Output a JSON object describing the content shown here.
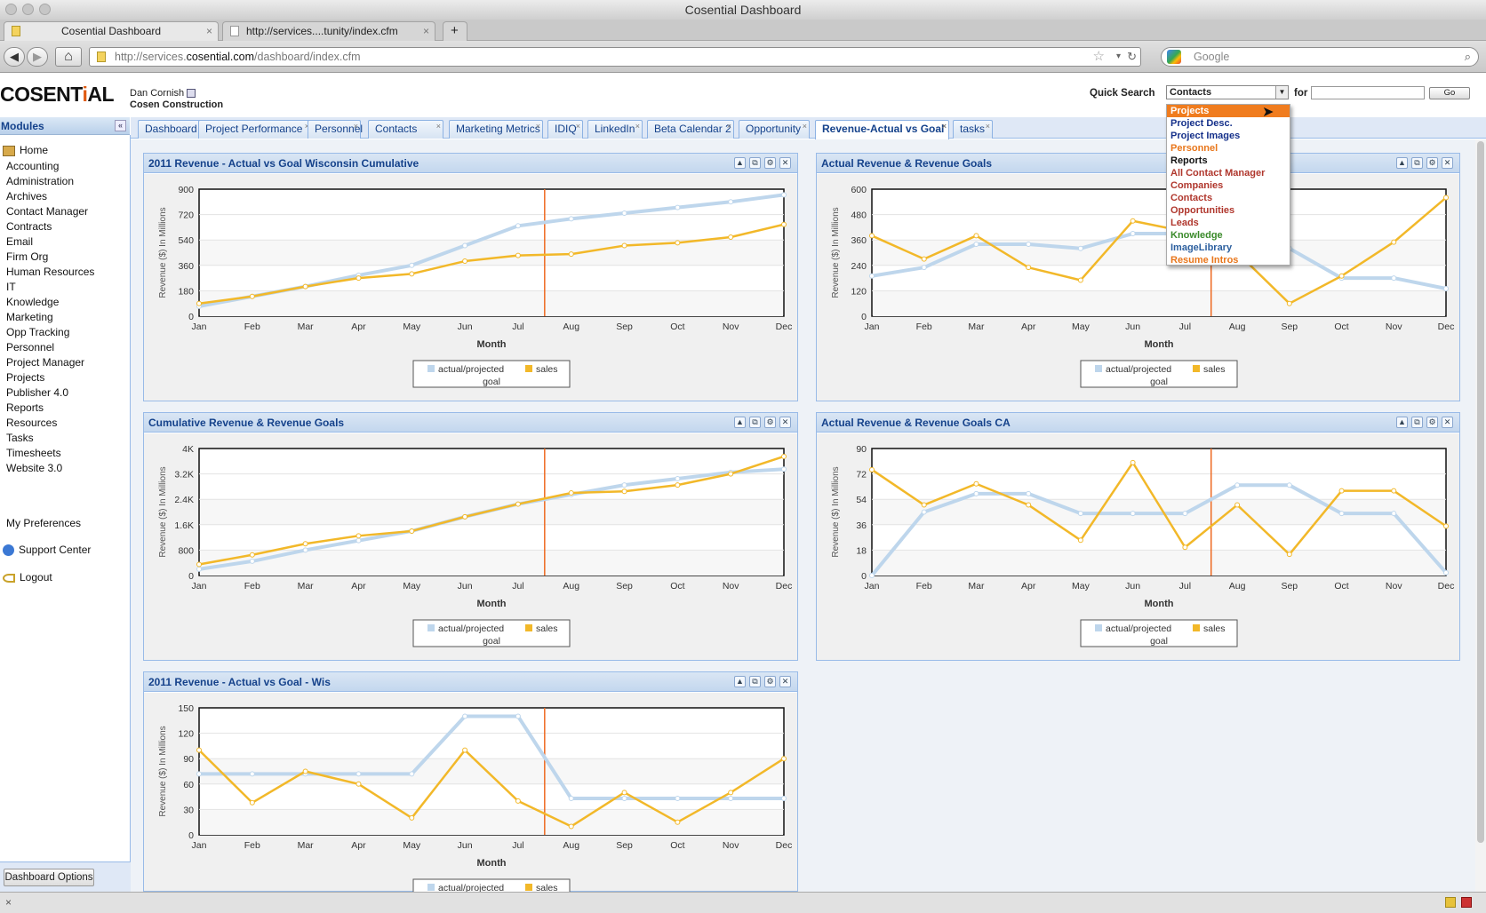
{
  "window": {
    "title": "Cosential Dashboard"
  },
  "browser_tabs": [
    {
      "label": "Cosential Dashboard",
      "close": "×"
    },
    {
      "label": "http://services....tunity/index.cfm",
      "close": "×"
    },
    {
      "label": "+"
    }
  ],
  "nav": {
    "back": "◀",
    "forward": "▶",
    "home": "⌂",
    "reload": "↻"
  },
  "url": {
    "prefix": "http://services.",
    "domain": "cosential.com",
    "path": "/dashboard/index.cfm"
  },
  "search_engine": {
    "placeholder": "Google"
  },
  "app": {
    "logo": {
      "pre": "COSENT",
      "i": "i",
      "post": "AL"
    },
    "user_name": "Dan Cornish",
    "company": "Cosen Construction",
    "quick_search": {
      "label": "Quick Search",
      "selected": "Contacts",
      "for_label": "for",
      "go": "Go",
      "options": [
        {
          "label": "Projects",
          "color": "#ffffff",
          "bg": "#f07c1e"
        },
        {
          "label": "Project Desc.",
          "color": "#15308a"
        },
        {
          "label": "Project Images",
          "color": "#15308a"
        },
        {
          "label": "Personnel",
          "color": "#e8761b"
        },
        {
          "label": "Reports",
          "color": "#111111"
        },
        {
          "label": "All Contact Manager",
          "color": "#b0372d"
        },
        {
          "label": "Companies",
          "color": "#b0372d"
        },
        {
          "label": "Contacts",
          "color": "#b0372d"
        },
        {
          "label": "Opportunities",
          "color": "#b0372d"
        },
        {
          "label": "Leads",
          "color": "#b0372d"
        },
        {
          "label": "Knowledge",
          "color": "#3a8a2a"
        },
        {
          "label": "ImageLibrary",
          "color": "#2c5f9e"
        },
        {
          "label": "Resume Intros",
          "color": "#e8761b"
        }
      ]
    }
  },
  "sidebar": {
    "header": "Modules",
    "collapse": "«",
    "home": "Home",
    "items": [
      "Accounting",
      "Administration",
      "Archives",
      "Contact Manager",
      "Contracts",
      "Email",
      "Firm Org",
      "Human Resources",
      "IT",
      "Knowledge",
      "Marketing",
      "Opp Tracking",
      "Personnel",
      "Project Manager",
      "Projects",
      "Publisher 4.0",
      "Reports",
      "Resources",
      "Tasks",
      "Timesheets",
      "Website 3.0"
    ],
    "preferences": "My Preferences",
    "support": "Support Center",
    "logout": "Logout",
    "dashboard_options": "Dashboard Options"
  },
  "dashboard_tabs": [
    {
      "label": "Dashboard"
    },
    {
      "label": "Project Performance"
    },
    {
      "label": "Personnel"
    },
    {
      "label": "Contacts"
    },
    {
      "label": "Marketing Metrics"
    },
    {
      "label": "IDIQ"
    },
    {
      "label": "LinkedIn"
    },
    {
      "label": "Beta Calendar 2"
    },
    {
      "label": "Opportunity"
    },
    {
      "label": "Revenue-Actual vs Goal",
      "active": true
    },
    {
      "label": "tasks"
    }
  ],
  "colors": {
    "goal": "#bed6ec",
    "sales": "#f2b829",
    "divider": "#ee6a22"
  },
  "statusbar": {
    "text": "×"
  },
  "chart_data": [
    {
      "type": "line",
      "title": "2011 Revenue - Actual vs Goal Wisconsin Cumulative",
      "xlabel": "Month",
      "ylabel": "Revenue ($) In Millions",
      "categories": [
        "Jan",
        "Feb",
        "Mar",
        "Apr",
        "May",
        "Jun",
        "Jul",
        "Aug",
        "Sep",
        "Oct",
        "Nov",
        "Dec"
      ],
      "ylim": [
        0,
        900
      ],
      "yticks": [
        "0",
        "180",
        "360",
        "540",
        "720",
        "900"
      ],
      "series": [
        {
          "name": "actual/projected goal",
          "values": [
            70,
            140,
            210,
            290,
            360,
            500,
            640,
            690,
            730,
            770,
            810,
            860
          ]
        },
        {
          "name": "sales",
          "values": [
            90,
            140,
            210,
            270,
            300,
            390,
            430,
            440,
            500,
            520,
            560,
            650
          ]
        }
      ],
      "marker_x": 7.5
    },
    {
      "type": "line",
      "title": "Actual Revenue & Revenue Goals",
      "xlabel": "Month",
      "ylabel": "Revenue ($) In Millions",
      "categories": [
        "Jan",
        "Feb",
        "Mar",
        "Apr",
        "May",
        "Jun",
        "Jul",
        "Aug",
        "Sep",
        "Oct",
        "Nov",
        "Dec"
      ],
      "ylim": [
        0,
        600
      ],
      "yticks": [
        "0",
        "120",
        "240",
        "360",
        "480",
        "600"
      ],
      "series": [
        {
          "name": "actual/projected goal",
          "values": [
            190,
            230,
            340,
            340,
            320,
            390,
            390,
            390,
            320,
            180,
            180,
            130
          ]
        },
        {
          "name": "sales",
          "values": [
            380,
            270,
            380,
            230,
            170,
            450,
            400,
            300,
            60,
            190,
            350,
            560
          ]
        }
      ],
      "marker_x": 7.5
    },
    {
      "type": "line",
      "title": "Cumulative Revenue & Revenue Goals",
      "xlabel": "Month",
      "ylabel": "Revenue ($) In Millions",
      "categories": [
        "Jan",
        "Feb",
        "Mar",
        "Apr",
        "May",
        "Jun",
        "Jul",
        "Aug",
        "Sep",
        "Oct",
        "Nov",
        "Dec"
      ],
      "ylim": [
        0,
        4000
      ],
      "yticks": [
        "0",
        "800",
        "1.6K",
        "2.4K",
        "3.2K",
        "4K"
      ],
      "series": [
        {
          "name": "actual/projected goal",
          "values": [
            200,
            450,
            800,
            1100,
            1400,
            1850,
            2250,
            2550,
            2850,
            3050,
            3250,
            3350
          ]
        },
        {
          "name": "sales",
          "values": [
            350,
            650,
            1000,
            1250,
            1400,
            1850,
            2250,
            2600,
            2650,
            2850,
            3200,
            3750
          ]
        }
      ],
      "marker_x": 7.5
    },
    {
      "type": "line",
      "title": "Actual Revenue & Revenue Goals CA",
      "xlabel": "Month",
      "ylabel": "Revenue ($) In Millions",
      "categories": [
        "Jan",
        "Feb",
        "Mar",
        "Apr",
        "May",
        "Jun",
        "Jul",
        "Aug",
        "Sep",
        "Oct",
        "Nov",
        "Dec"
      ],
      "ylim": [
        0,
        90
      ],
      "yticks": [
        "0",
        "18",
        "36",
        "54",
        "72",
        "90"
      ],
      "series": [
        {
          "name": "actual/projected goal",
          "values": [
            0,
            45,
            58,
            58,
            44,
            44,
            44,
            64,
            64,
            44,
            44,
            2
          ]
        },
        {
          "name": "sales",
          "values": [
            75,
            50,
            65,
            50,
            25,
            80,
            20,
            50,
            15,
            60,
            60,
            35
          ]
        }
      ],
      "marker_x": 7.5
    },
    {
      "type": "line",
      "title": "2011 Revenue - Actual vs Goal - Wis",
      "xlabel": "Month",
      "ylabel": "Revenue ($) In Millions",
      "categories": [
        "Jan",
        "Feb",
        "Mar",
        "Apr",
        "May",
        "Jun",
        "Jul",
        "Aug",
        "Sep",
        "Oct",
        "Nov",
        "Dec"
      ],
      "ylim": [
        0,
        150
      ],
      "yticks": [
        "0",
        "30",
        "60",
        "90",
        "120",
        "150"
      ],
      "series": [
        {
          "name": "actual/projected goal",
          "values": [
            72,
            72,
            72,
            72,
            72,
            140,
            140,
            43,
            43,
            43,
            43,
            43
          ]
        },
        {
          "name": "sales",
          "values": [
            100,
            38,
            75,
            60,
            20,
            100,
            40,
            10,
            50,
            15,
            50,
            90
          ]
        }
      ],
      "marker_x": 7.5
    }
  ]
}
